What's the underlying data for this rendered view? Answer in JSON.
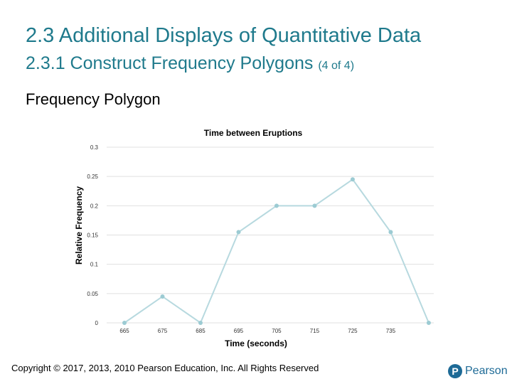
{
  "slide": {
    "title": "2.3 Additional Displays of Quantitative Data",
    "subtitle_main": "2.3.1 Construct Frequency Polygons ",
    "subtitle_small": "(4 of 4)",
    "heading": "Frequency Polygon"
  },
  "chart_data": {
    "type": "line",
    "title": "Time between Eruptions",
    "xlabel": "Time (seconds)",
    "ylabel": "Relative Frequency",
    "categories": [
      "665",
      "675",
      "685",
      "695",
      "705",
      "715",
      "725",
      "735",
      "745"
    ],
    "category_labels": [
      "665",
      "675",
      "685",
      "695",
      "705",
      "715",
      "725",
      "735",
      ""
    ],
    "values": [
      0,
      0.045,
      0,
      0.155,
      0.2,
      0.2,
      0.245,
      0.155,
      0
    ],
    "ylim": [
      0,
      0.3
    ],
    "yticks": [
      0,
      0.05,
      0.1,
      0.15,
      0.2,
      0.25,
      0.3
    ],
    "ytick_labels": [
      "0",
      "0.05",
      "0.1",
      "0.15",
      "0.2",
      "0.25",
      "0.3"
    ],
    "grid": true,
    "legend": "none",
    "line_color": "#b7d9df",
    "marker_color": "#9ccbd3",
    "grid_color": "#e0e0e0"
  },
  "footer": {
    "copyright": "Copyright © 2017, 2013, 2010 Pearson Education, Inc. All Rights Reserved",
    "logo_text": "Pearson",
    "logo_mark": "P"
  }
}
